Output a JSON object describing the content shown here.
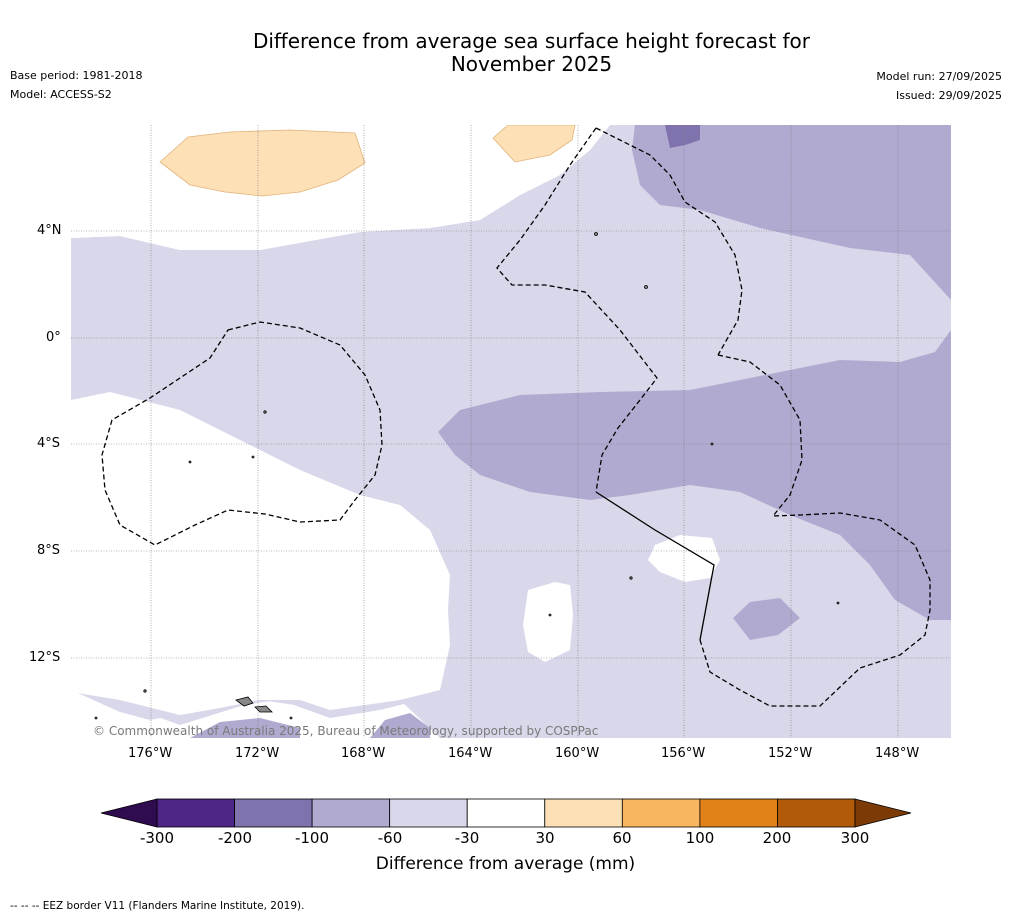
{
  "title": {
    "line1": "Difference from average sea surface height forecast for",
    "line2": "November 2025"
  },
  "meta_left": {
    "base_period": "Base period: 1981-2018",
    "model": "Model: ACCESS-S2"
  },
  "meta_right": {
    "model_run": "Model run: 27/09/2025",
    "issued": "Issued: 29/09/2025"
  },
  "map": {
    "lat_labels": [
      "4°N",
      "0°",
      "4°S",
      "8°S",
      "12°S"
    ],
    "lon_labels": [
      "176°W",
      "172°W",
      "168°W",
      "164°W",
      "160°W",
      "156°W",
      "152°W",
      "148°W"
    ],
    "copyright": "© Commonwealth of Australia 2025, Bureau of Meteorology, supported by COSPPac"
  },
  "colorbar": {
    "title": "Difference from average (mm)",
    "ticks": [
      "-300",
      "-200",
      "-100",
      "-60",
      "-30",
      "30",
      "60",
      "100",
      "200",
      "300"
    ],
    "colors": [
      "#4e2585",
      "#8073ad",
      "#b0aad0",
      "#d8d8ea",
      "#ffffff",
      "#fde0b6",
      "#f9b660",
      "#e08218",
      "#b15a0a"
    ],
    "under_color": "#2f0b50",
    "over_color": "#7c3a06"
  },
  "footer": "--  --  -- EEZ border V11 (Flanders Marine Institute, 2019)."
}
